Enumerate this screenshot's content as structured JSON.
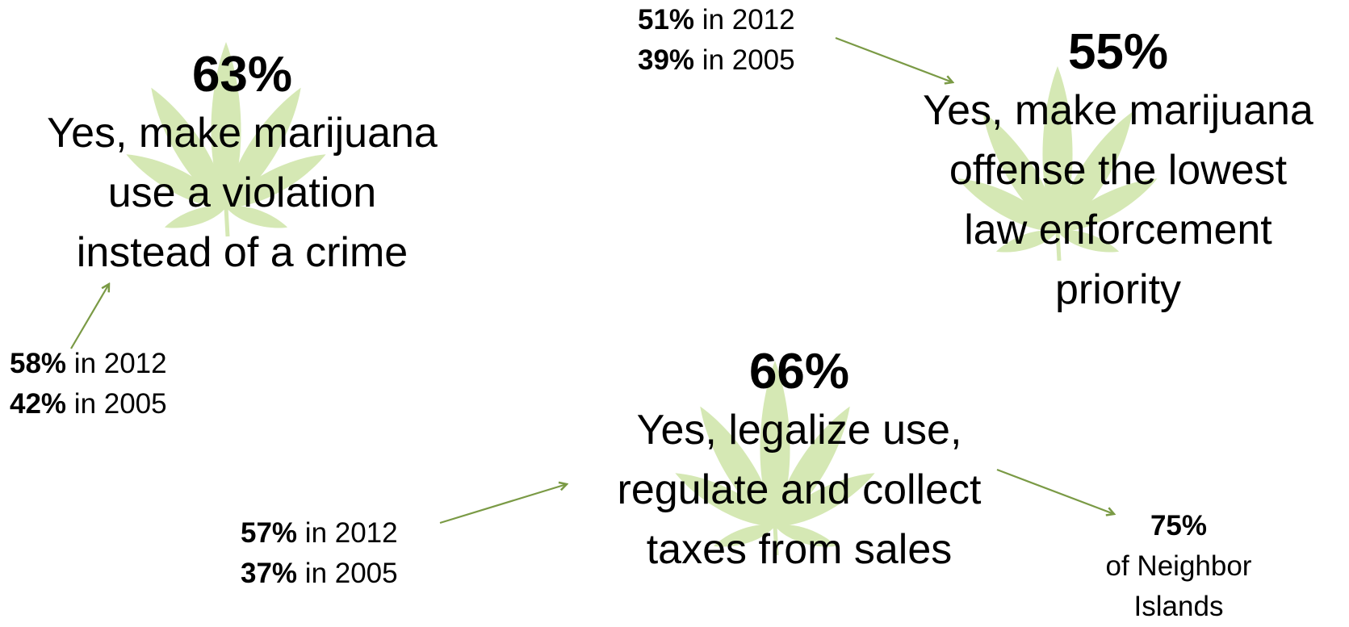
{
  "colors": {
    "leaf": "#d5e8b4",
    "arrow": "#7a9a45",
    "text": "#000000"
  },
  "icons": {
    "leaf": "cannabis-leaf-icon",
    "arrow": "arrow-icon"
  },
  "statements": [
    {
      "id": "violation",
      "percent": "63%",
      "lines": [
        "Yes, make marijuana",
        "use a violation",
        "instead of a crime"
      ],
      "history": [
        {
          "value": "58%",
          "label": " in 2012"
        },
        {
          "value": "42%",
          "label": " in 2005"
        }
      ]
    },
    {
      "id": "lowest-priority",
      "percent": "55%",
      "lines": [
        "Yes, make marijuana",
        "offense the lowest",
        "law enforcement",
        "priority"
      ],
      "history": [
        {
          "value": "51%",
          "label": " in 2012"
        },
        {
          "value": "39%",
          "label": " in 2005"
        }
      ]
    },
    {
      "id": "legalize",
      "percent": "66%",
      "lines": [
        "Yes, legalize use,",
        "regulate and collect",
        "taxes from sales"
      ],
      "history": [
        {
          "value": "57%",
          "label": " in 2012"
        },
        {
          "value": "37%",
          "label": " in 2005"
        }
      ],
      "note": {
        "value": "75%",
        "lines": [
          "of Neighbor",
          "Islands"
        ]
      }
    }
  ]
}
